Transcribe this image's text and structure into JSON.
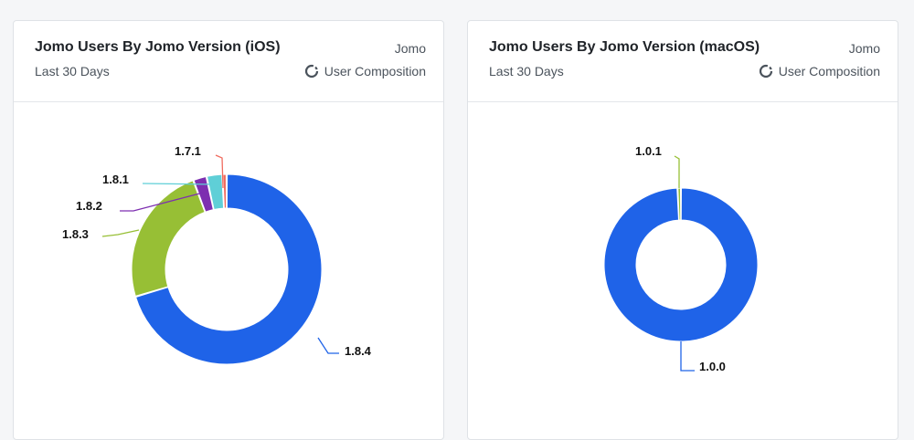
{
  "cards": [
    {
      "title": "Jomo Users By Jomo Version (iOS)",
      "subtitle": "Last 30 Days",
      "project": "Jomo",
      "chart_type_label": "User Composition"
    },
    {
      "title": "Jomo Users By Jomo Version (macOS)",
      "subtitle": "Last 30 Days",
      "project": "Jomo",
      "chart_type_label": "User Composition"
    }
  ],
  "icons": {
    "chart_type": "donut-chart-icon"
  },
  "colors": {
    "blue": "#1f63e8",
    "green": "#97bf35",
    "purple": "#7d2fb0",
    "teal": "#5fcfd7",
    "red": "#f06b5e"
  },
  "chart_data": [
    {
      "type": "pie",
      "donut": true,
      "categories": [
        "1.8.4",
        "1.8.3",
        "1.8.2",
        "1.8.1",
        "1.7.1"
      ],
      "values": [
        70.5,
        24.0,
        2.3,
        2.7,
        0.5
      ],
      "colors": [
        "#1f63e8",
        "#97bf35",
        "#7d2fb0",
        "#5fcfd7",
        "#f06b5e"
      ]
    },
    {
      "type": "pie",
      "donut": true,
      "categories": [
        "1.0.0",
        "1.0.1"
      ],
      "values": [
        99.3,
        0.7
      ],
      "colors": [
        "#1f63e8",
        "#97bf35"
      ]
    }
  ]
}
